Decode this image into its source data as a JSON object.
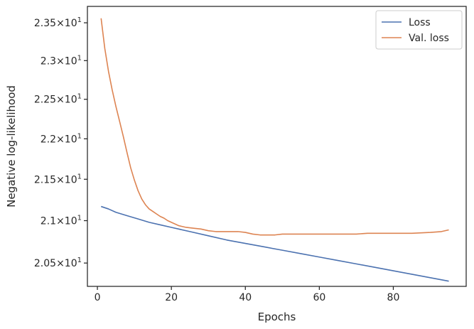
{
  "chart_data": {
    "type": "line",
    "xlabel": "Epochs",
    "ylabel": "Negative log-likelihood",
    "xlim": [
      -2.7,
      99.7
    ],
    "ylim": [
      20.23,
      23.72
    ],
    "yscale": "log",
    "grid": false,
    "legend_position": "top-right",
    "x_ticks": [
      {
        "value": 0,
        "label": "0"
      },
      {
        "value": 20,
        "label": "20"
      },
      {
        "value": 40,
        "label": "40"
      },
      {
        "value": 60,
        "label": "60"
      },
      {
        "value": 80,
        "label": "80"
      }
    ],
    "y_ticks": [
      {
        "value": 20.5,
        "mantissa": "2.05",
        "base": "10",
        "exp": "1"
      },
      {
        "value": 21.0,
        "mantissa": "2.1",
        "base": "10",
        "exp": "1"
      },
      {
        "value": 21.5,
        "mantissa": "2.15",
        "base": "10",
        "exp": "1"
      },
      {
        "value": 22.0,
        "mantissa": "2.2",
        "base": "10",
        "exp": "1"
      },
      {
        "value": 22.5,
        "mantissa": "2.25",
        "base": "10",
        "exp": "1"
      },
      {
        "value": 23.0,
        "mantissa": "2.3",
        "base": "10",
        "exp": "1"
      },
      {
        "value": 23.5,
        "mantissa": "2.35",
        "base": "10",
        "exp": "1"
      }
    ],
    "series": [
      {
        "name": "Loss",
        "color": "#4c72b0",
        "x": [
          1,
          3,
          5,
          8,
          11,
          14,
          17,
          20,
          25,
          30,
          35,
          40,
          45,
          50,
          55,
          60,
          65,
          70,
          75,
          80,
          85,
          90,
          95
        ],
        "y": [
          21.17,
          21.14,
          21.1,
          21.06,
          21.02,
          20.98,
          20.95,
          20.92,
          20.87,
          20.82,
          20.77,
          20.73,
          20.69,
          20.65,
          20.61,
          20.57,
          20.53,
          20.49,
          20.45,
          20.41,
          20.37,
          20.33,
          20.29
        ]
      },
      {
        "name": "Val. loss",
        "color": "#dd8452",
        "x": [
          1,
          2,
          3,
          4,
          5,
          6,
          7,
          8,
          9,
          10,
          11,
          12,
          13,
          14,
          15,
          16,
          17,
          18,
          19,
          20,
          22,
          24,
          26,
          28,
          30,
          32,
          34,
          36,
          38,
          40,
          42,
          44,
          46,
          48,
          50,
          55,
          60,
          65,
          68,
          70,
          73,
          75,
          80,
          85,
          90,
          93,
          95
        ],
        "y": [
          23.56,
          23.16,
          22.86,
          22.62,
          22.41,
          22.22,
          22.03,
          21.83,
          21.64,
          21.49,
          21.36,
          21.26,
          21.19,
          21.14,
          21.11,
          21.08,
          21.05,
          21.03,
          21.0,
          20.98,
          20.94,
          20.92,
          20.91,
          20.9,
          20.88,
          20.87,
          20.87,
          20.87,
          20.87,
          20.86,
          20.84,
          20.83,
          20.83,
          20.83,
          20.84,
          20.84,
          20.84,
          20.84,
          20.84,
          20.84,
          20.85,
          20.85,
          20.85,
          20.85,
          20.86,
          20.87,
          20.89
        ]
      }
    ]
  }
}
